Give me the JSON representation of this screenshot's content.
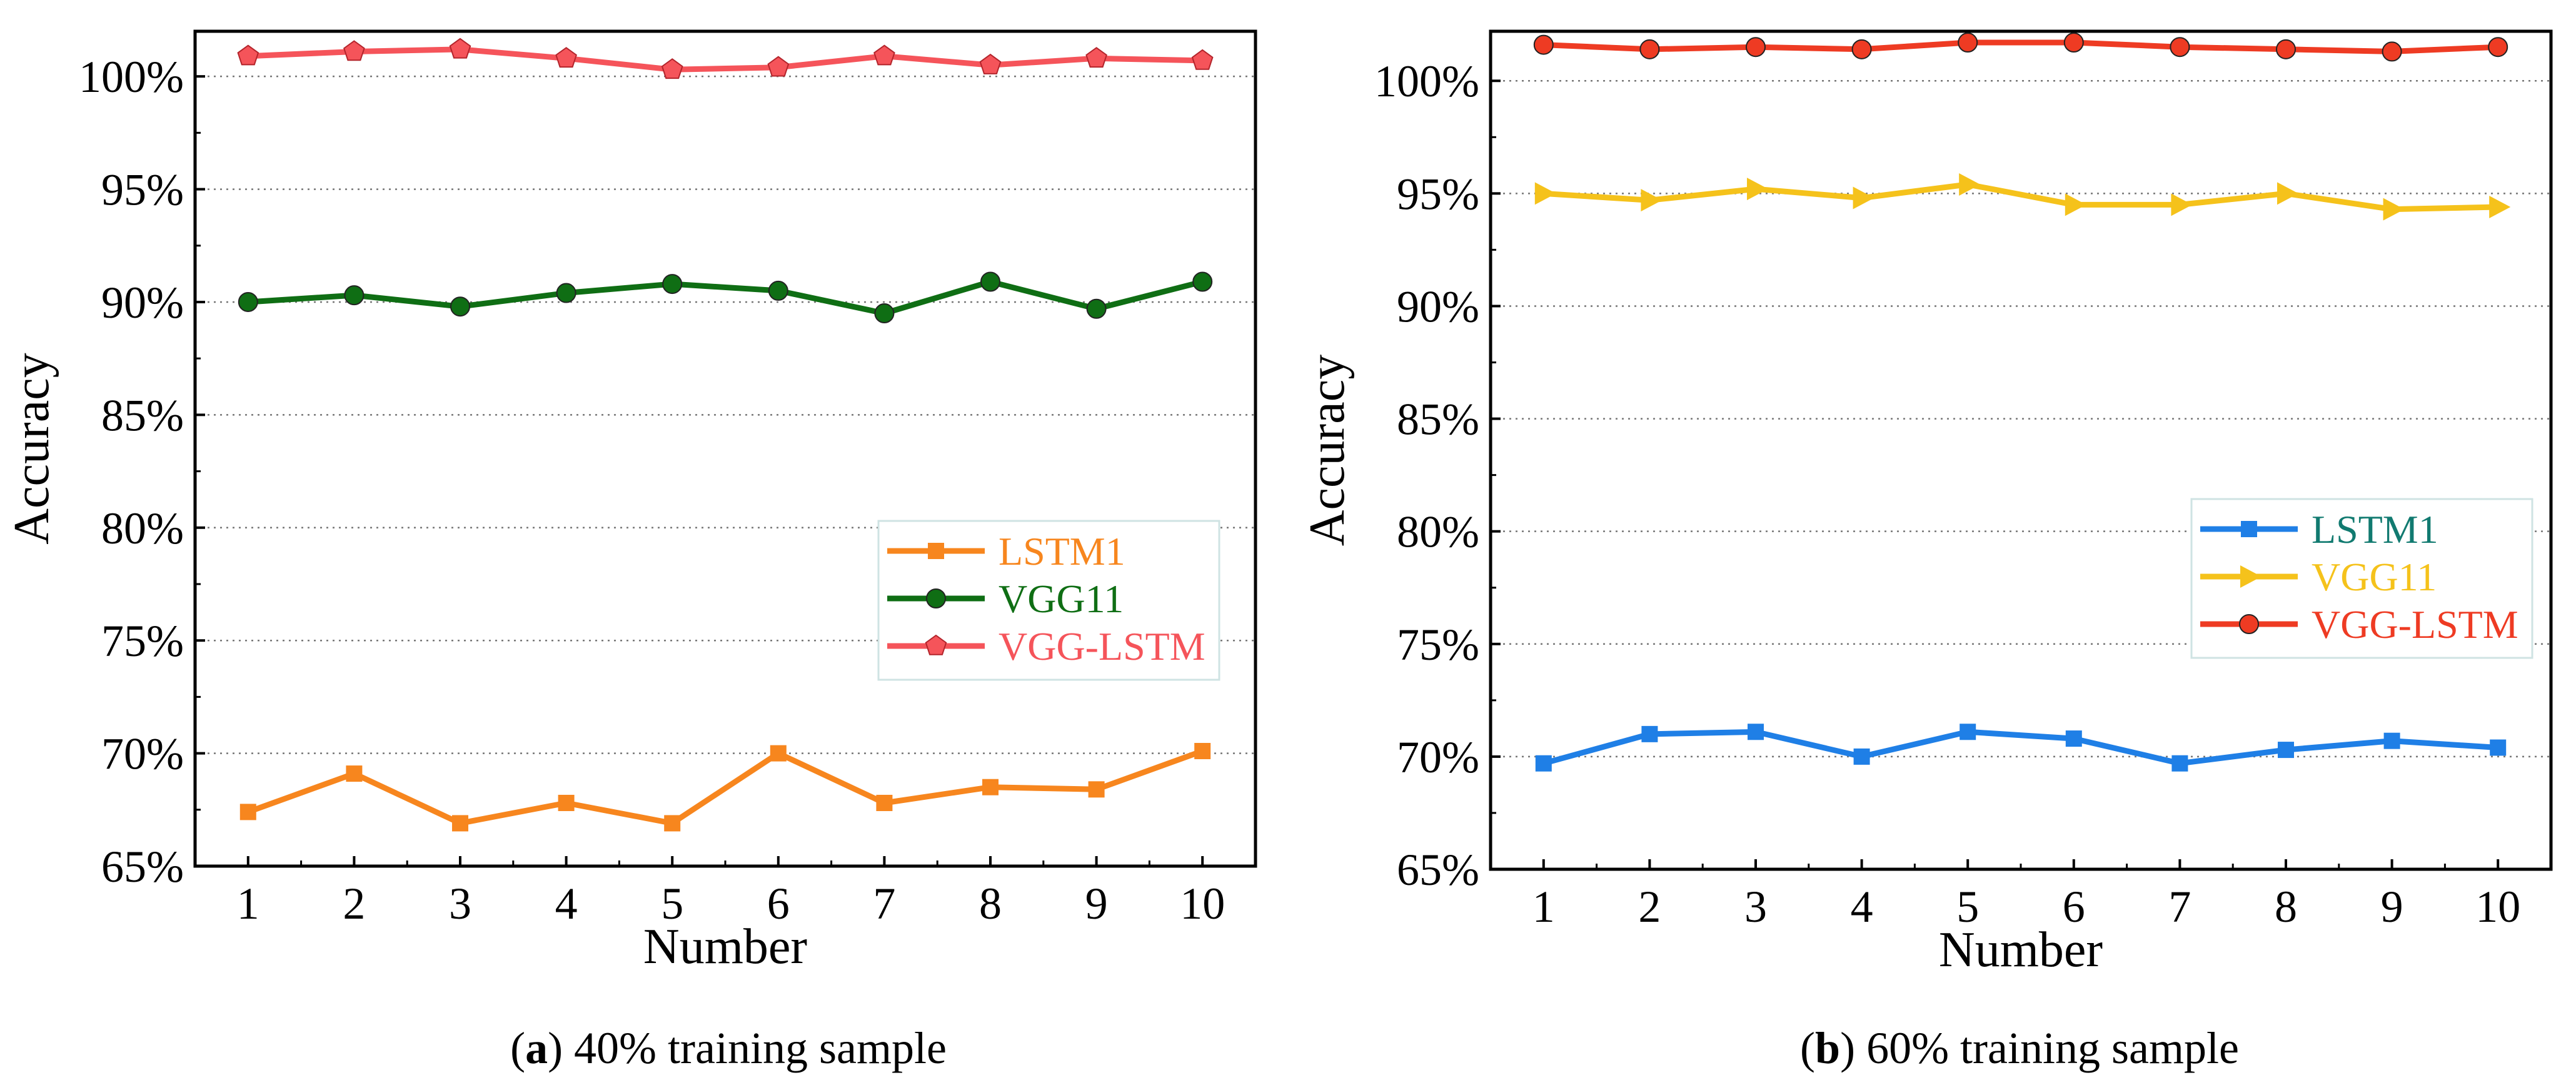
{
  "chart_data": [
    {
      "type": "line",
      "caption_letter": "a",
      "caption_text": " 40% training sample",
      "caption_open": "(",
      "caption_close": ")",
      "xlabel": "Number",
      "ylabel": "Accuracy",
      "x": [
        1,
        2,
        3,
        4,
        5,
        6,
        7,
        8,
        9,
        10
      ],
      "x_tick_labels": [
        "1",
        "2",
        "3",
        "4",
        "5",
        "6",
        "7",
        "8",
        "9",
        "10"
      ],
      "xlim": [
        0.5,
        10.5
      ],
      "ylim": [
        65,
        102
      ],
      "y_ticks": [
        65,
        70,
        75,
        80,
        85,
        90,
        95,
        100
      ],
      "y_tick_labels": [
        "65%",
        "70%",
        "75%",
        "80%",
        "85%",
        "90%",
        "95%",
        "100%"
      ],
      "grid": "horizontal-dotted",
      "legend_position": "center-right",
      "series": [
        {
          "name": "LSTM1",
          "marker": "square",
          "color": "#f7861e",
          "label_color": "#f7861e",
          "values": [
            67.4,
            69.1,
            66.9,
            67.8,
            66.9,
            70.0,
            67.8,
            68.5,
            68.4,
            70.1
          ]
        },
        {
          "name": "VGG11",
          "marker": "circle",
          "color": "#0f6e14",
          "label_color": "#0f6e14",
          "values": [
            90.0,
            90.3,
            89.8,
            90.4,
            90.8,
            90.5,
            89.5,
            90.9,
            89.7,
            90.9
          ]
        },
        {
          "name": "VGG-LSTM",
          "marker": "pentagon",
          "color": "#f5545a",
          "label_color": "#f5545a",
          "values": [
            100.9,
            101.1,
            101.2,
            100.8,
            100.3,
            100.4,
            100.9,
            100.5,
            100.8,
            100.7
          ]
        }
      ]
    },
    {
      "type": "line",
      "caption_letter": "b",
      "caption_text": " 60% training sample",
      "caption_open": "(",
      "caption_close": ")",
      "xlabel": "Number",
      "ylabel": "Accuracy",
      "x": [
        1,
        2,
        3,
        4,
        5,
        6,
        7,
        8,
        9,
        10
      ],
      "x_tick_labels": [
        "1",
        "2",
        "3",
        "4",
        "5",
        "6",
        "7",
        "8",
        "9",
        "10"
      ],
      "xlim": [
        0.5,
        10.5
      ],
      "ylim": [
        65,
        102.2
      ],
      "y_ticks": [
        65,
        70,
        75,
        80,
        85,
        90,
        95,
        100
      ],
      "y_tick_labels": [
        "65%",
        "70%",
        "75%",
        "80%",
        "85%",
        "90%",
        "95%",
        "100%"
      ],
      "grid": "horizontal-dotted",
      "legend_position": "center-right",
      "series": [
        {
          "name": "LSTM1",
          "marker": "square",
          "color": "#1f7fe6",
          "label_color": "#117a70",
          "values": [
            69.7,
            71.0,
            71.1,
            70.0,
            71.1,
            70.8,
            69.7,
            70.3,
            70.7,
            70.4
          ]
        },
        {
          "name": "VGG11",
          "marker": "triangle-right",
          "color": "#f5c21b",
          "label_color": "#f5c21b",
          "values": [
            95.0,
            94.7,
            95.2,
            94.8,
            95.4,
            94.5,
            94.5,
            95.0,
            94.3,
            94.4
          ]
        },
        {
          "name": "VGG-LSTM",
          "marker": "circle",
          "color": "#ee3b23",
          "label_color": "#ee3b23",
          "values": [
            101.6,
            101.4,
            101.5,
            101.4,
            101.7,
            101.7,
            101.5,
            101.4,
            101.3,
            101.5
          ]
        }
      ]
    }
  ]
}
